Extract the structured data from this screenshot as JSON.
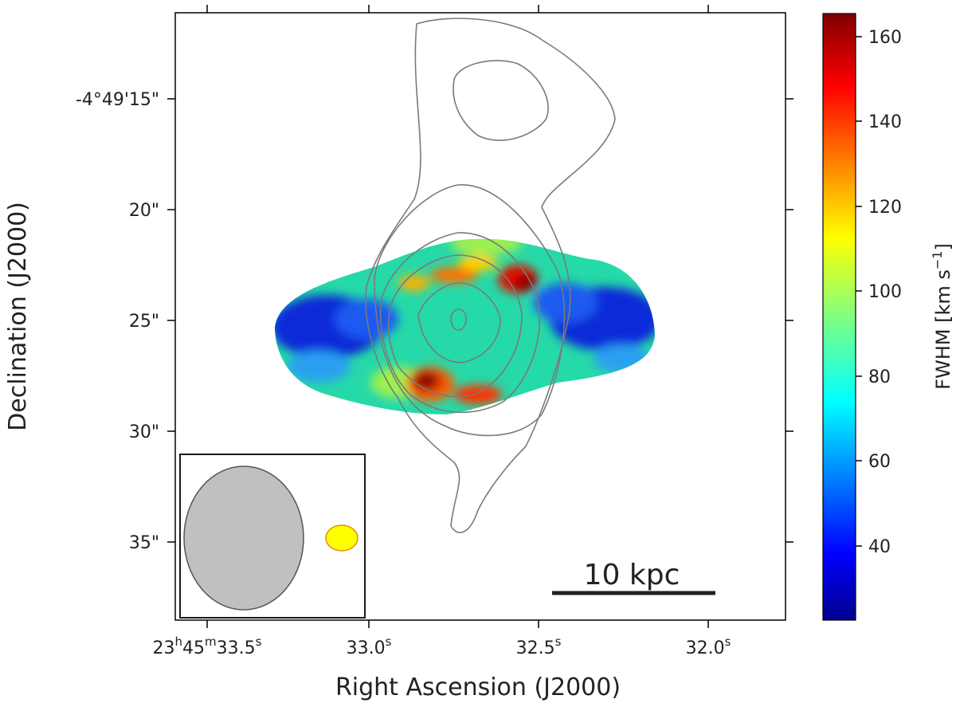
{
  "chart_data": {
    "type": "heatmap",
    "title": "",
    "xlabel": "Right Ascension (J2000)",
    "ylabel": "Declination (J2000)",
    "x_ticks": [
      {
        "value": 33.5,
        "label_main": "23",
        "sup1": "h",
        "mid": "45",
        "sup2": "m",
        "tail": "33.5",
        "sup3": "s"
      },
      {
        "value": 33.0,
        "label_main": "33.0",
        "sup": "s"
      },
      {
        "value": 32.5,
        "label_main": "32.5",
        "sup": "s"
      },
      {
        "value": 32.0,
        "label_main": "32.0",
        "sup": "s"
      }
    ],
    "xlim": [
      33.64,
      31.82
    ],
    "y_ticks": [
      {
        "value": 15,
        "label": "-4°49'15\""
      },
      {
        "value": 20,
        "label": "20\""
      },
      {
        "value": 25,
        "label": "25\""
      },
      {
        "value": 30,
        "label": "30\""
      },
      {
        "value": 35,
        "label": "35\""
      }
    ],
    "ylim": [
      10.8,
      38.5
    ],
    "colorbar": {
      "label": "FWHM [km s",
      "label_sup": "−1",
      "label_end": "]",
      "range": [
        22,
        165
      ],
      "ticks": [
        40,
        60,
        80,
        100,
        120,
        140,
        160
      ],
      "colormap": "jet"
    },
    "heatmap_description": "Ring-shaped FWHM map; low values (~30-50 km/s) in outer lobes east and west, high values (~140-165 km/s) in northern and southern arcs near the center.",
    "contours": [
      {
        "level": "outer",
        "shape": "extended north-south envelope"
      },
      {
        "level": "mid",
        "shape": "central ellipse"
      },
      {
        "level": "inner",
        "shape": "nested ellipses"
      },
      {
        "level": "core",
        "shape": "small peak"
      }
    ],
    "scale_bar": {
      "label": "10 kpc"
    },
    "beam_inset": {
      "radio_beam": "gray ellipse",
      "optical_beam": "yellow ellipse"
    }
  }
}
